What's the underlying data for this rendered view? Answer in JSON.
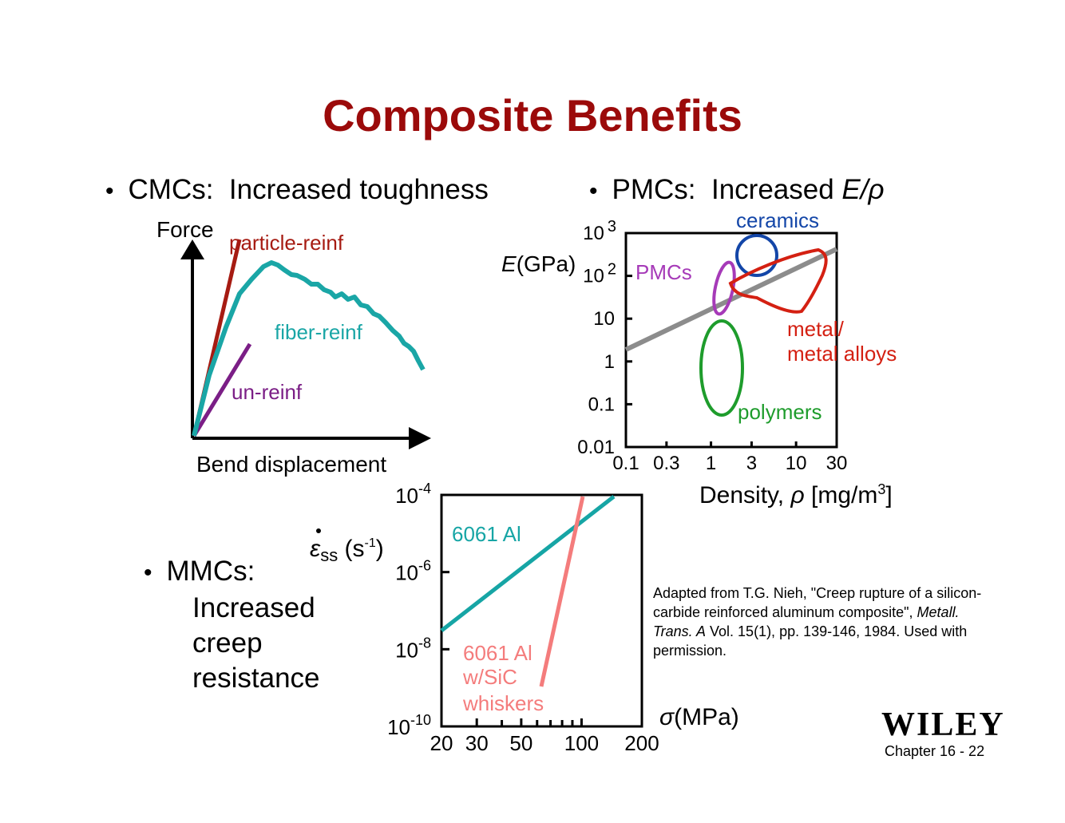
{
  "slide": {
    "title": "Composite Benefits",
    "bullet_dot": "•"
  },
  "cmc": {
    "bullet_prefix": "CMCs:",
    "bullet_text": "Increased toughness",
    "y_axis_label": "Force",
    "x_axis_label": "Bend displacement",
    "curves": {
      "particle": "particle-reinf",
      "fiber": "fiber-reinf",
      "unreinforced": "un-reinf"
    },
    "colors": {
      "particle": "#a61b12",
      "fiber": "#1aa6a6",
      "unreinforced": "#7b1e86",
      "axis": "#000000"
    }
  },
  "pmc": {
    "bullet_prefix": "PMCs:",
    "bullet_text": "Increased",
    "bullet_symbol": "E/ρ",
    "chart_data": {
      "type": "scatter",
      "xlabel": "Density, ρ [mg/m3]",
      "ylabel": "E(GPa)",
      "x_scale": "log",
      "y_scale": "log",
      "x_ticks": [
        "0.1",
        "0.3",
        "1",
        "3",
        "10",
        "30"
      ],
      "y_ticks": [
        "0.01",
        "0.1",
        "1",
        "10",
        "10 2",
        "10 3"
      ],
      "regions": [
        {
          "name": "ceramics",
          "color": "#1346a8"
        },
        {
          "name": "PMCs",
          "color": "#a63ab8"
        },
        {
          "name": "metal/",
          "name2": "metal alloys",
          "color": "#d42012"
        },
        {
          "name": "polymers",
          "color": "#1e9c2c"
        }
      ],
      "guide_line_color": "#8c8c8c"
    }
  },
  "mmc": {
    "bullet_prefix": "MMCs:",
    "lines": [
      "Increased",
      "creep",
      "resistance"
    ],
    "chart_data": {
      "type": "line",
      "x_scale": "log",
      "y_scale": "log",
      "xlabel": "σ(MPa)",
      "ylabel": "ε̇ss (s-1)",
      "x_ticks": [
        "20",
        "30",
        "50",
        "100",
        "200"
      ],
      "y_ticks": [
        "10-4",
        "10-6",
        "10-8",
        "10-10"
      ],
      "series": [
        {
          "name": "6061 Al",
          "color": "#16a5a5"
        },
        {
          "name": "6061 Al",
          "name2": "w/SiC",
          "name3": "whiskers",
          "color": "#f47c7c"
        }
      ]
    }
  },
  "citation": {
    "text_a": "Adapted from T.G. Nieh, \"Creep rupture of a silicon-carbide reinforced aluminum composite\", ",
    "text_journal": "Metall. Trans. A",
    "text_b": " Vol. 15(1), pp. 139-146, 1984.  Used with permission."
  },
  "footer": {
    "logo": "WILEY",
    "slide_number": "Chapter 16 -  22"
  }
}
